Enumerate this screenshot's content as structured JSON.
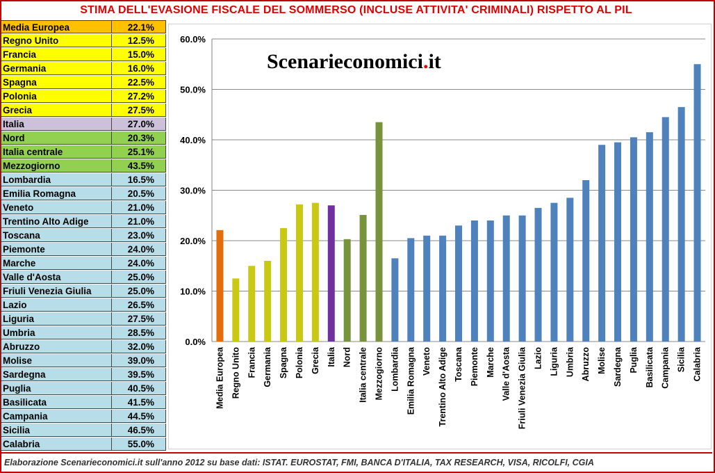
{
  "title": "STIMA DELL'EVASIONE FISCALE DEL SOMMERSO (INCLUSE ATTIVITA' CRIMINALI) RISPETTO AL PIL",
  "watermark": {
    "main": "Scenarieconomici",
    "dot": ".",
    "tld": "it"
  },
  "footer": "Elaborazione Scenarieconomici.it sull'anno 2012 su base dati: ISTAT. EUROSTAT, FMI, BANCA D'ITALIA, TAX RESEARCH, VISA, RICOLFI, CGIA",
  "colors": {
    "table_orange": "#ffc000",
    "table_yellow": "#ffff00",
    "table_lilac": "#ccc0da",
    "table_green": "#92d050",
    "table_blue": "#b7dde8",
    "bar_orange": "#e46c0a",
    "bar_yellow": "#c8c815",
    "bar_purple": "#7030a0",
    "bar_green": "#77933c",
    "bar_blue": "#4f81bd",
    "gridline": "#8a8a8a"
  },
  "table": [
    {
      "name": "Media Europea",
      "value": "22.1%",
      "group": "orange"
    },
    {
      "name": "Regno Unito",
      "value": "12.5%",
      "group": "yellow"
    },
    {
      "name": "Francia",
      "value": "15.0%",
      "group": "yellow"
    },
    {
      "name": "Germania",
      "value": "16.0%",
      "group": "yellow"
    },
    {
      "name": "Spagna",
      "value": "22.5%",
      "group": "yellow"
    },
    {
      "name": "Polonia",
      "value": "27.2%",
      "group": "yellow"
    },
    {
      "name": "Grecia",
      "value": "27.5%",
      "group": "yellow"
    },
    {
      "name": "Italia",
      "value": "27.0%",
      "group": "lilac"
    },
    {
      "name": "Nord",
      "value": "20.3%",
      "group": "green"
    },
    {
      "name": "Italia centrale",
      "value": "25.1%",
      "group": "green"
    },
    {
      "name": "Mezzogiorno",
      "value": "43.5%",
      "group": "green"
    },
    {
      "name": "Lombardia",
      "value": "16.5%",
      "group": "blue"
    },
    {
      "name": "Emilia Romagna",
      "value": "20.5%",
      "group": "blue"
    },
    {
      "name": "Veneto",
      "value": "21.0%",
      "group": "blue"
    },
    {
      "name": "Trentino Alto Adige",
      "value": "21.0%",
      "group": "blue"
    },
    {
      "name": "Toscana",
      "value": "23.0%",
      "group": "blue"
    },
    {
      "name": "Piemonte",
      "value": "24.0%",
      "group": "blue"
    },
    {
      "name": "Marche",
      "value": "24.0%",
      "group": "blue"
    },
    {
      "name": "Valle d'Aosta",
      "value": "25.0%",
      "group": "blue"
    },
    {
      "name": "Friuli Venezia Giulia",
      "value": "25.0%",
      "group": "blue"
    },
    {
      "name": "Lazio",
      "value": "26.5%",
      "group": "blue"
    },
    {
      "name": "Liguria",
      "value": "27.5%",
      "group": "blue"
    },
    {
      "name": "Umbria",
      "value": "28.5%",
      "group": "blue"
    },
    {
      "name": "Abruzzo",
      "value": "32.0%",
      "group": "blue"
    },
    {
      "name": "Molise",
      "value": "39.0%",
      "group": "blue"
    },
    {
      "name": "Sardegna",
      "value": "39.5%",
      "group": "blue"
    },
    {
      "name": "Puglia",
      "value": "40.5%",
      "group": "blue"
    },
    {
      "name": "Basilicata",
      "value": "41.5%",
      "group": "blue"
    },
    {
      "name": "Campania",
      "value": "44.5%",
      "group": "blue"
    },
    {
      "name": "Sicilia",
      "value": "46.5%",
      "group": "blue"
    },
    {
      "name": "Calabria",
      "value": "55.0%",
      "group": "blue"
    }
  ],
  "chart_data": {
    "type": "bar",
    "title": "",
    "xlabel": "",
    "ylabel": "",
    "ylim": [
      0,
      60
    ],
    "yticks": [
      "0.0%",
      "10.0%",
      "20.0%",
      "30.0%",
      "40.0%",
      "50.0%",
      "60.0%"
    ],
    "grid": true,
    "legend": "none",
    "categories": [
      "Media Europea",
      "Regno Unito",
      "Francia",
      "Germania",
      "Spagna",
      "Polonia",
      "Grecia",
      "Italia",
      "Nord",
      "Italia centrale",
      "Mezzogiorno",
      "Lombardia",
      "Emilia Romagna",
      "Veneto",
      "Trentino Alto Adige",
      "Toscana",
      "Piemonte",
      "Marche",
      "Valle d'Aosta",
      "Friuli Venezia Giulia",
      "Lazio",
      "Liguria",
      "Umbria",
      "Abruzzo",
      "Molise",
      "Sardegna",
      "Puglia",
      "Basilicata",
      "Campania",
      "Sicilia",
      "Calabria"
    ],
    "values": [
      22.1,
      12.5,
      15.0,
      16.0,
      22.5,
      27.2,
      27.5,
      27.0,
      20.3,
      25.1,
      43.5,
      16.5,
      20.5,
      21.0,
      21.0,
      23.0,
      24.0,
      24.0,
      25.0,
      25.0,
      26.5,
      27.5,
      28.5,
      32.0,
      39.0,
      39.5,
      40.5,
      41.5,
      44.5,
      46.5,
      55.0
    ],
    "bar_colors": [
      "bar_orange",
      "bar_yellow",
      "bar_yellow",
      "bar_yellow",
      "bar_yellow",
      "bar_yellow",
      "bar_yellow",
      "bar_purple",
      "bar_green",
      "bar_green",
      "bar_green",
      "bar_blue",
      "bar_blue",
      "bar_blue",
      "bar_blue",
      "bar_blue",
      "bar_blue",
      "bar_blue",
      "bar_blue",
      "bar_blue",
      "bar_blue",
      "bar_blue",
      "bar_blue",
      "bar_blue",
      "bar_blue",
      "bar_blue",
      "bar_blue",
      "bar_blue",
      "bar_blue",
      "bar_blue",
      "bar_blue"
    ]
  }
}
